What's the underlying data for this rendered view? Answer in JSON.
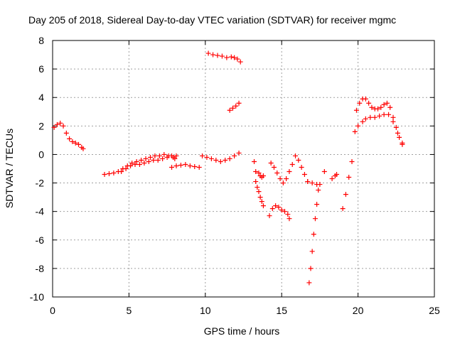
{
  "chart_data": {
    "type": "scatter",
    "title": "Day 205 of 2018, Sidereal Day-to-day VTEC variation (SDTVAR) for receiver mgmc",
    "xlabel": "GPS time / hours",
    "ylabel": "SDTVAR / TECUs",
    "xlim": [
      0,
      25
    ],
    "ylim": [
      -10,
      8
    ],
    "xticks": [
      0,
      5,
      10,
      15,
      20,
      25
    ],
    "yticks": [
      -10,
      -8,
      -6,
      -4,
      -2,
      0,
      2,
      4,
      6,
      8
    ],
    "x_tick_labels": [
      "0",
      "5",
      "10",
      "15",
      "20",
      "25"
    ],
    "y_tick_labels": [
      "-10",
      "-8",
      "-6",
      "-4",
      "-2",
      "0",
      "2",
      "4",
      "6",
      "8"
    ],
    "grid": true,
    "marker": "+",
    "color": "#ff0000",
    "series": [
      {
        "x": [
          0.1,
          0.3,
          0.5,
          0.7,
          0.9,
          1.1,
          1.3,
          1.5,
          1.7,
          1.9,
          2.0
        ],
        "y": [
          1.9,
          2.1,
          2.2,
          2.0,
          1.5,
          1.1,
          0.9,
          0.8,
          0.7,
          0.5,
          0.4
        ]
      },
      {
        "x": [
          3.4,
          3.7,
          4.0,
          4.3,
          4.6,
          4.9,
          5.2,
          5.5,
          5.8,
          6.1,
          6.4,
          6.7,
          7.0,
          7.3,
          7.6,
          7.9,
          8.0
        ],
        "y": [
          -1.4,
          -1.35,
          -1.3,
          -1.2,
          -1.0,
          -0.8,
          -0.6,
          -0.5,
          -0.4,
          -0.3,
          -0.2,
          -0.1,
          -0.1,
          0.0,
          -0.1,
          -0.2,
          -0.3
        ]
      },
      {
        "x": [
          4.5,
          4.8,
          5.1,
          5.4,
          5.7,
          6.0,
          6.3,
          6.6,
          6.9,
          7.2,
          7.5,
          7.8,
          8.1
        ],
        "y": [
          -1.2,
          -1.0,
          -0.8,
          -0.7,
          -0.7,
          -0.6,
          -0.5,
          -0.4,
          -0.4,
          -0.3,
          -0.2,
          -0.1,
          -0.1
        ]
      },
      {
        "x": [
          7.8,
          8.1,
          8.4,
          8.7,
          9.0,
          9.3,
          9.6
        ],
        "y": [
          -0.9,
          -0.8,
          -0.75,
          -0.7,
          -0.8,
          -0.85,
          -0.9
        ]
      },
      {
        "x": [
          9.8,
          10.1,
          10.4,
          10.7,
          11.0,
          11.3,
          11.6,
          11.9,
          12.2
        ],
        "y": [
          -0.1,
          -0.2,
          -0.3,
          -0.4,
          -0.5,
          -0.4,
          -0.3,
          -0.1,
          0.1
        ]
      },
      {
        "x": [
          10.2,
          10.5,
          10.8,
          11.1,
          11.4,
          11.7,
          11.9,
          12.1,
          12.3
        ],
        "y": [
          7.1,
          7.0,
          6.95,
          6.9,
          6.8,
          6.85,
          6.8,
          6.7,
          6.5
        ]
      },
      {
        "x": [
          11.6,
          11.8,
          12.0,
          12.2
        ],
        "y": [
          3.1,
          3.25,
          3.4,
          3.6
        ]
      },
      {
        "x": [
          13.2,
          13.3,
          13.5,
          13.6,
          13.7,
          13.8
        ],
        "y": [
          -0.5,
          -1.2,
          -1.3,
          -1.5,
          -1.6,
          -1.5
        ]
      },
      {
        "x": [
          13.3,
          13.4,
          13.5,
          13.6,
          13.7,
          13.8
        ],
        "y": [
          -1.9,
          -2.3,
          -2.6,
          -3.0,
          -3.3,
          -3.6
        ]
      },
      {
        "x": [
          14.2,
          14.4,
          14.6,
          14.8,
          15.0,
          15.2,
          15.4,
          15.5
        ],
        "y": [
          -4.3,
          -3.8,
          -3.6,
          -3.7,
          -3.9,
          -4.0,
          -4.2,
          -4.5
        ]
      },
      {
        "x": [
          14.3,
          14.5,
          14.7,
          14.9,
          15.1,
          15.3,
          15.5,
          15.7,
          15.9,
          16.1,
          16.3,
          16.5,
          16.7
        ],
        "y": [
          -0.6,
          -0.9,
          -1.3,
          -1.7,
          -2.0,
          -1.7,
          -1.2,
          -0.7,
          -0.1,
          -0.4,
          -0.9,
          -1.4,
          -1.9
        ]
      },
      {
        "x": [
          16.7,
          17.0,
          17.3,
          17.5
        ],
        "y": [
          -1.9,
          -2.0,
          -2.1,
          -2.1
        ]
      },
      {
        "x": [
          16.8,
          16.9,
          17.0,
          17.1,
          17.2,
          17.3,
          17.4
        ],
        "y": [
          -9.0,
          -8.0,
          -6.8,
          -5.6,
          -4.5,
          -3.5,
          -2.5
        ]
      },
      {
        "x": [
          17.8
        ],
        "y": [
          -1.2
        ]
      },
      {
        "x": [
          18.3,
          18.5,
          18.6
        ],
        "y": [
          -1.7,
          -1.5,
          -1.4
        ]
      },
      {
        "x": [
          19.0,
          19.2,
          19.4,
          19.6
        ],
        "y": [
          -3.8,
          -2.8,
          -1.6,
          -0.5
        ]
      },
      {
        "x": [
          19.8,
          20.0,
          20.3,
          20.5,
          20.8,
          21.1,
          21.4,
          21.7,
          22.0,
          22.3,
          22.6,
          22.9
        ],
        "y": [
          1.6,
          2.0,
          2.3,
          2.5,
          2.6,
          2.6,
          2.7,
          2.8,
          2.8,
          2.3,
          1.5,
          0.8
        ]
      },
      {
        "x": [
          19.9,
          20.1,
          20.3,
          20.5,
          20.7,
          20.9,
          21.1,
          21.3,
          21.5,
          21.7,
          21.9,
          22.1,
          22.3,
          22.5,
          22.7,
          22.9
        ],
        "y": [
          3.1,
          3.6,
          3.9,
          3.9,
          3.6,
          3.3,
          3.2,
          3.2,
          3.3,
          3.5,
          3.6,
          3.3,
          2.6,
          1.9,
          1.2,
          0.7
        ]
      }
    ]
  }
}
